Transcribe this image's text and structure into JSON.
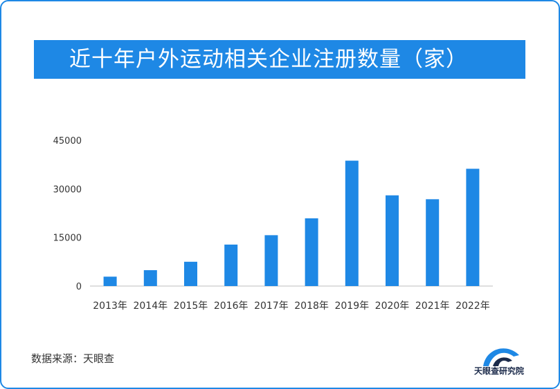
{
  "title": "近十年户外运动相关企业注册数量（家）",
  "source": "数据来源：天眼查",
  "logo_text": "天眼查研究院",
  "colors": {
    "accent": "#1e88e5",
    "bar": "#1e88e5",
    "text": "#333333"
  },
  "chart_data": {
    "type": "bar",
    "categories": [
      "2013年",
      "2014年",
      "2015年",
      "2016年",
      "2017年",
      "2018年",
      "2019年",
      "2020年",
      "2021年",
      "2022年"
    ],
    "values": [
      2900,
      4900,
      7500,
      12800,
      15700,
      20900,
      38700,
      28000,
      26800,
      36200
    ],
    "yticks": [
      "0",
      "15000",
      "30000",
      "45000"
    ],
    "ylim": [
      0,
      45000
    ],
    "grid": false,
    "legend": "none"
  }
}
